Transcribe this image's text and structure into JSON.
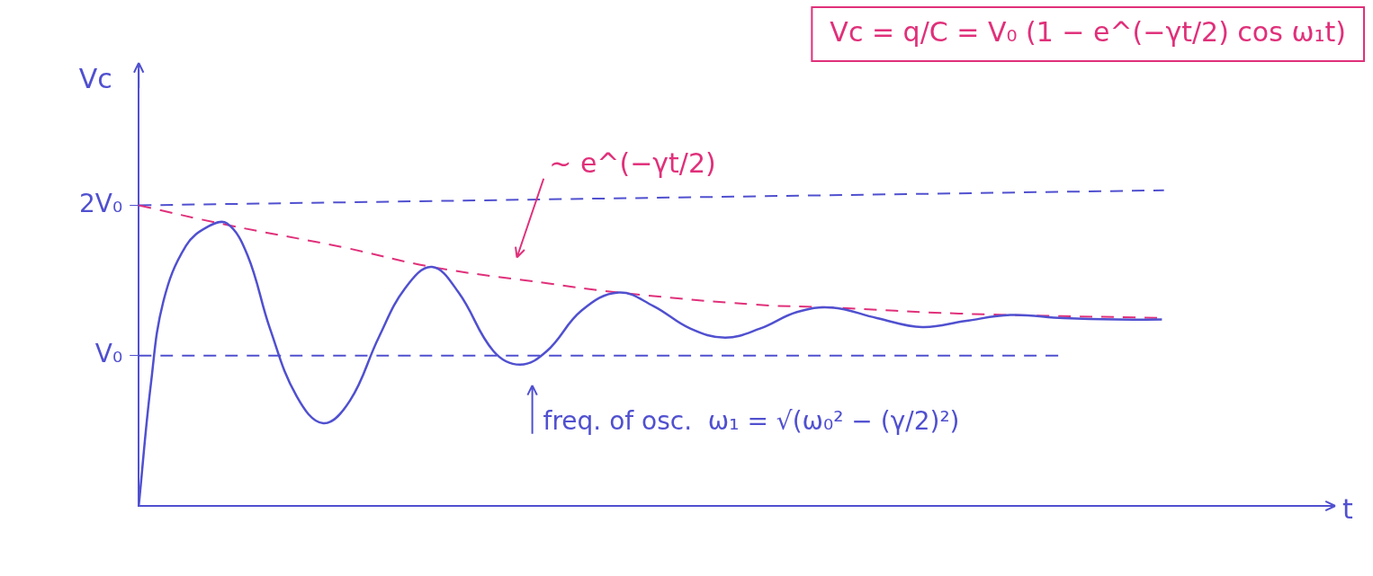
{
  "chart_data": {
    "type": "line",
    "x_label": "t",
    "y_label": "Vc",
    "xlim": [
      0,
      5.8
    ],
    "xticks": [],
    "ylim": [
      0,
      2.9
    ],
    "yticks": [
      {
        "value": 1,
        "label": "V₀"
      },
      {
        "value": 2,
        "label": "2V₀"
      }
    ],
    "grid": false,
    "tick_labels": "y",
    "annotations": [
      {
        "text": "Vc = q/C = V₀ (1 − e^(−γt/2) cos ω₁t)"
      },
      {
        "text": "~ e^(−γt/2)"
      },
      {
        "text": "freq. of osc.  ω₁ = √(ω₀² − (γ/2)²)"
      }
    ],
    "series": [
      {
        "color": "#5050d0",
        "line_style": "solid",
        "marker": "none",
        "x": [
          0,
          0.06,
          0.12,
          0.23,
          0.34,
          0.43,
          0.53,
          0.64,
          0.77,
          0.9,
          1.03,
          1.17,
          1.3,
          1.43,
          1.56,
          1.73,
          1.86,
          1.99,
          2.16,
          2.34,
          2.51,
          2.69,
          2.86,
          3.03,
          3.21,
          3.38,
          3.6,
          3.82,
          4.03,
          4.25,
          4.51,
          4.77,
          4.99
        ],
        "values": [
          0,
          0.82,
          1.36,
          1.73,
          1.86,
          1.88,
          1.67,
          1.18,
          0.73,
          0.55,
          0.7,
          1.12,
          1.45,
          1.59,
          1.42,
          1.03,
          0.94,
          1.03,
          1.3,
          1.42,
          1.33,
          1.18,
          1.12,
          1.18,
          1.29,
          1.32,
          1.25,
          1.19,
          1.23,
          1.27,
          1.25,
          1.24,
          1.24
        ]
      },
      {
        "color": "#e0307a",
        "line_style": "dashed",
        "marker": "none",
        "x": [
          0,
          0.43,
          1.0,
          1.43,
          2.0,
          2.34,
          3.0,
          3.38,
          4.0,
          5.0
        ],
        "values": [
          2.0,
          1.87,
          1.72,
          1.59,
          1.48,
          1.42,
          1.34,
          1.32,
          1.28,
          1.25
        ]
      },
      {
        "color": "#5050d0",
        "line_style": "dashed",
        "marker": "none",
        "x": [
          0,
          5.0
        ],
        "values": [
          2.0,
          2.1
        ]
      },
      {
        "color": "#5050d0",
        "line_style": "dashed",
        "marker": "none",
        "x": [
          0,
          4.5
        ],
        "values": [
          1.0,
          1.0
        ]
      }
    ]
  }
}
